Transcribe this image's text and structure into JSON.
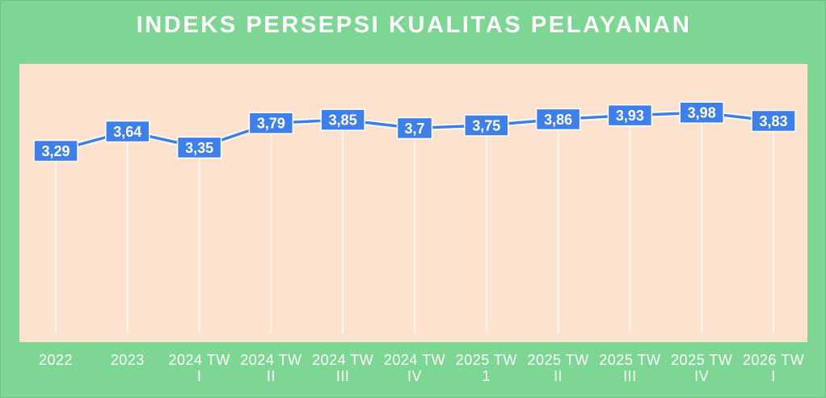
{
  "title": "INDEKS PERSEPSI KUALITAS PELAYANAN",
  "colors": {
    "background": "#7dd693",
    "plot_area": "#fde3cf",
    "line": "#3f7fe9",
    "marker": "#3f7fe9",
    "label_text": "#ffffff"
  },
  "chart_data": {
    "type": "line",
    "title": "INDEKS PERSEPSI KUALITAS PELAYANAN",
    "categories": [
      [
        "2022"
      ],
      [
        "2023"
      ],
      [
        "2024 TW",
        "I"
      ],
      [
        "2024 TW",
        "II"
      ],
      [
        "2024 TW",
        "III"
      ],
      [
        "2024 TW",
        "IV"
      ],
      [
        "2025 TW",
        "1"
      ],
      [
        "2025 TW",
        "II"
      ],
      [
        "2025 TW",
        "III"
      ],
      [
        "2025 TW",
        "IV"
      ],
      [
        "2026 TW",
        "I"
      ]
    ],
    "values": [
      3.29,
      3.64,
      3.35,
      3.79,
      3.85,
      3.7,
      3.75,
      3.86,
      3.93,
      3.98,
      3.83
    ],
    "data_labels": [
      "3,29",
      "3,64",
      "3,35",
      "3,79",
      "3,85",
      "3,7",
      "3,75",
      "3,86",
      "3,93",
      "3,98",
      "3,83"
    ],
    "xlabel": "",
    "ylabel": "",
    "ylim": [
      0,
      4.8
    ],
    "grid": "vertical drop lines per category",
    "legend": "none"
  }
}
